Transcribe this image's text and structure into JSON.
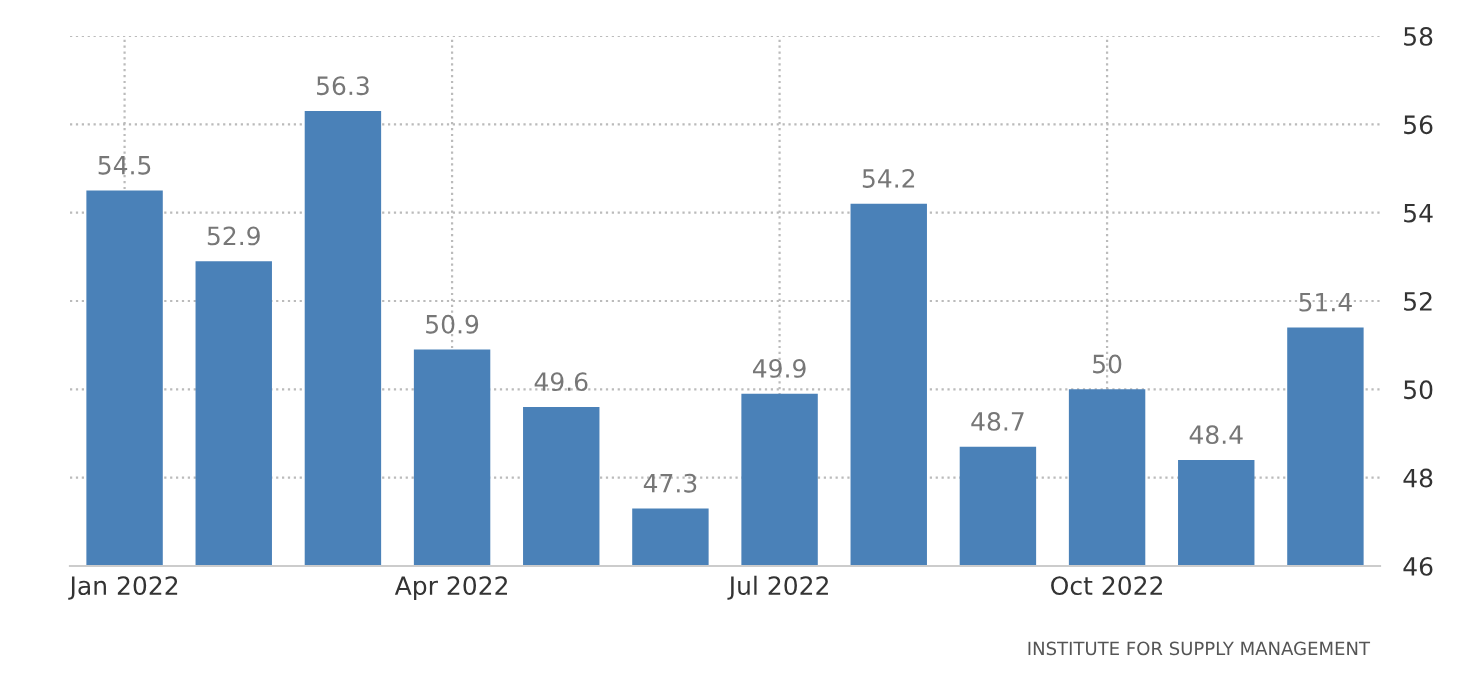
{
  "chart_data": {
    "type": "bar",
    "categories": [
      "Jan 2022",
      null,
      null,
      "Apr 2022",
      null,
      null,
      "Jul 2022",
      null,
      null,
      "Oct 2022",
      null,
      null
    ],
    "values": [
      54.5,
      52.9,
      56.3,
      50.9,
      49.6,
      47.3,
      49.9,
      54.2,
      48.7,
      50,
      48.4,
      51.4
    ],
    "color": "#4a81b8",
    "ylim": [
      46,
      58
    ],
    "yticks": [
      46,
      48,
      50,
      52,
      54,
      56,
      58
    ],
    "grid": true,
    "data_labels": true,
    "annotations": [
      "INSTITUTE FOR SUPPLY MANAGEMENT"
    ]
  }
}
